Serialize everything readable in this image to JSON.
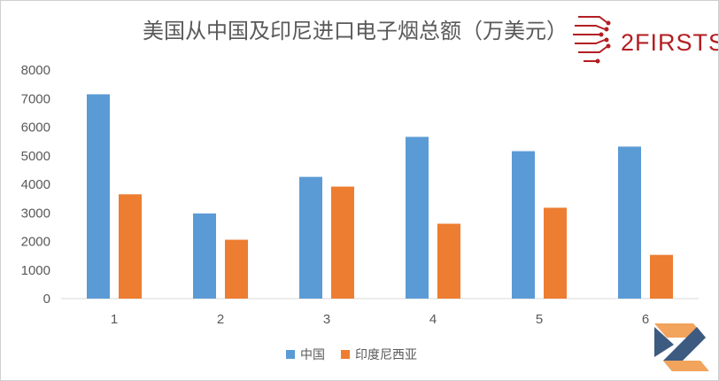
{
  "chart_data": {
    "type": "bar",
    "title": "美国从中国及印尼进口电子烟总额（万美元）",
    "xlabel": "",
    "ylabel": "",
    "categories": [
      "1",
      "2",
      "3",
      "4",
      "5",
      "6"
    ],
    "series": [
      {
        "name": "中国",
        "color": "#5b9bd5",
        "values": [
          7150,
          2980,
          4260,
          5660,
          5160,
          5320
        ]
      },
      {
        "name": "印度尼西亚",
        "color": "#ed7d31",
        "values": [
          3650,
          2060,
          3920,
          2620,
          3180,
          1530
        ]
      }
    ],
    "ylim": [
      0,
      8000
    ],
    "yticks": [
      0,
      1000,
      2000,
      3000,
      4000,
      5000,
      6000,
      7000,
      8000
    ],
    "grid": false,
    "legend": "bottom"
  },
  "watermark": {
    "logo_text": "2FIRSTS",
    "brand_color": "#b31e23",
    "corner_mark": "z-logo-icon",
    "corner_colors": [
      "#f2a35c",
      "#3d5a80"
    ]
  }
}
